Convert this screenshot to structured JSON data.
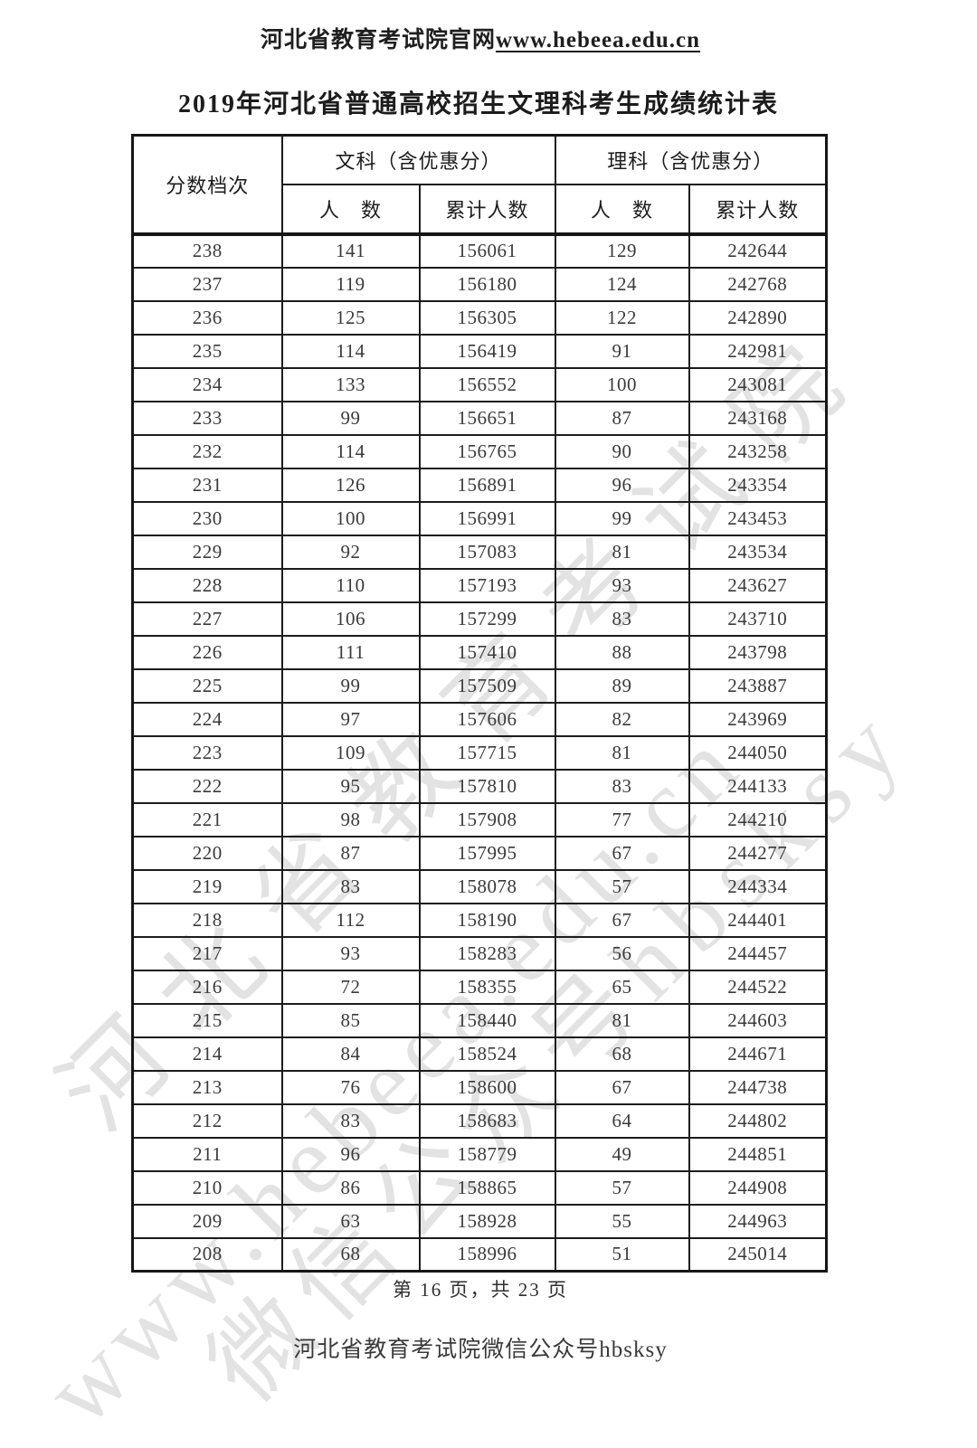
{
  "page": {
    "header_site": "河北省教育考试院官网",
    "header_url": "www.hebeea.edu.cn",
    "title": "2019年河北省普通高校招生文理科考生成绩统计表",
    "footer_page": "第 16 页，共 23 页",
    "footer_wechat": "河北省教育考试院微信公众号hbsksy"
  },
  "watermark": {
    "color": "#e3e3e3",
    "lines": [
      "河北省教育考试院",
      "www.hebeea.edu.cn",
      "微信公众号hbsksy"
    ]
  },
  "table": {
    "col_score": "分数档次",
    "group_wen": "文科（含优惠分）",
    "group_li": "理科（含优惠分）",
    "sub_count": "人　数",
    "sub_cum": "累计人数",
    "rows": [
      {
        "score": "238",
        "wen_count": "141",
        "wen_cum": "156061",
        "li_count": "129",
        "li_cum": "242644"
      },
      {
        "score": "237",
        "wen_count": "119",
        "wen_cum": "156180",
        "li_count": "124",
        "li_cum": "242768"
      },
      {
        "score": "236",
        "wen_count": "125",
        "wen_cum": "156305",
        "li_count": "122",
        "li_cum": "242890"
      },
      {
        "score": "235",
        "wen_count": "114",
        "wen_cum": "156419",
        "li_count": "91",
        "li_cum": "242981"
      },
      {
        "score": "234",
        "wen_count": "133",
        "wen_cum": "156552",
        "li_count": "100",
        "li_cum": "243081"
      },
      {
        "score": "233",
        "wen_count": "99",
        "wen_cum": "156651",
        "li_count": "87",
        "li_cum": "243168"
      },
      {
        "score": "232",
        "wen_count": "114",
        "wen_cum": "156765",
        "li_count": "90",
        "li_cum": "243258"
      },
      {
        "score": "231",
        "wen_count": "126",
        "wen_cum": "156891",
        "li_count": "96",
        "li_cum": "243354"
      },
      {
        "score": "230",
        "wen_count": "100",
        "wen_cum": "156991",
        "li_count": "99",
        "li_cum": "243453"
      },
      {
        "score": "229",
        "wen_count": "92",
        "wen_cum": "157083",
        "li_count": "81",
        "li_cum": "243534"
      },
      {
        "score": "228",
        "wen_count": "110",
        "wen_cum": "157193",
        "li_count": "93",
        "li_cum": "243627"
      },
      {
        "score": "227",
        "wen_count": "106",
        "wen_cum": "157299",
        "li_count": "83",
        "li_cum": "243710"
      },
      {
        "score": "226",
        "wen_count": "111",
        "wen_cum": "157410",
        "li_count": "88",
        "li_cum": "243798"
      },
      {
        "score": "225",
        "wen_count": "99",
        "wen_cum": "157509",
        "li_count": "89",
        "li_cum": "243887"
      },
      {
        "score": "224",
        "wen_count": "97",
        "wen_cum": "157606",
        "li_count": "82",
        "li_cum": "243969"
      },
      {
        "score": "223",
        "wen_count": "109",
        "wen_cum": "157715",
        "li_count": "81",
        "li_cum": "244050"
      },
      {
        "score": "222",
        "wen_count": "95",
        "wen_cum": "157810",
        "li_count": "83",
        "li_cum": "244133"
      },
      {
        "score": "221",
        "wen_count": "98",
        "wen_cum": "157908",
        "li_count": "77",
        "li_cum": "244210"
      },
      {
        "score": "220",
        "wen_count": "87",
        "wen_cum": "157995",
        "li_count": "67",
        "li_cum": "244277"
      },
      {
        "score": "219",
        "wen_count": "83",
        "wen_cum": "158078",
        "li_count": "57",
        "li_cum": "244334"
      },
      {
        "score": "218",
        "wen_count": "112",
        "wen_cum": "158190",
        "li_count": "67",
        "li_cum": "244401"
      },
      {
        "score": "217",
        "wen_count": "93",
        "wen_cum": "158283",
        "li_count": "56",
        "li_cum": "244457"
      },
      {
        "score": "216",
        "wen_count": "72",
        "wen_cum": "158355",
        "li_count": "65",
        "li_cum": "244522"
      },
      {
        "score": "215",
        "wen_count": "85",
        "wen_cum": "158440",
        "li_count": "81",
        "li_cum": "244603"
      },
      {
        "score": "214",
        "wen_count": "84",
        "wen_cum": "158524",
        "li_count": "68",
        "li_cum": "244671"
      },
      {
        "score": "213",
        "wen_count": "76",
        "wen_cum": "158600",
        "li_count": "67",
        "li_cum": "244738"
      },
      {
        "score": "212",
        "wen_count": "83",
        "wen_cum": "158683",
        "li_count": "64",
        "li_cum": "244802"
      },
      {
        "score": "211",
        "wen_count": "96",
        "wen_cum": "158779",
        "li_count": "49",
        "li_cum": "244851"
      },
      {
        "score": "210",
        "wen_count": "86",
        "wen_cum": "158865",
        "li_count": "57",
        "li_cum": "244908"
      },
      {
        "score": "209",
        "wen_count": "63",
        "wen_cum": "158928",
        "li_count": "55",
        "li_cum": "244963"
      },
      {
        "score": "208",
        "wen_count": "68",
        "wen_cum": "158996",
        "li_count": "51",
        "li_cum": "245014"
      }
    ]
  }
}
